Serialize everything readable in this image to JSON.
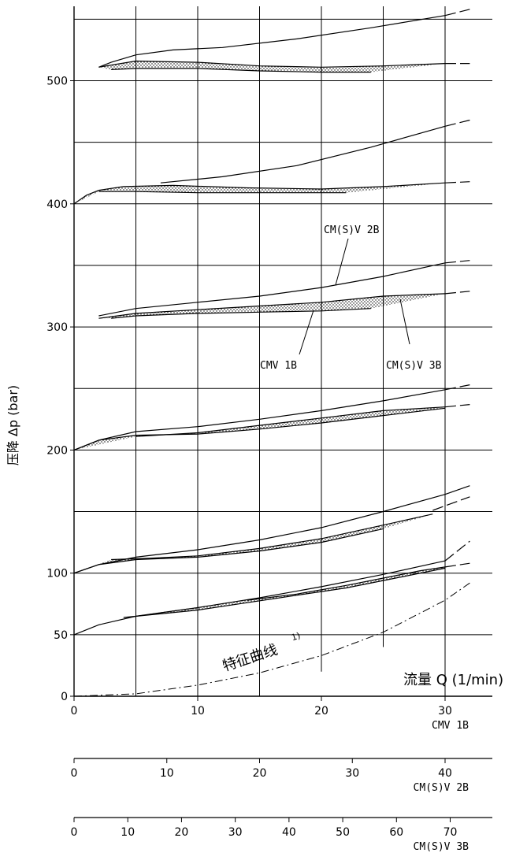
{
  "chart_data": {
    "type": "line",
    "ylabel": "压降 Δp (bar)",
    "xlabel": "流量 Q (1/min)",
    "xlim": [
      0,
      34
    ],
    "ylim": [
      0,
      560
    ],
    "grid": true,
    "y_ticks": [
      {
        "value": 0,
        "label": "0"
      },
      {
        "value": 50,
        "label": "50"
      },
      {
        "value": 100,
        "label": "100"
      },
      {
        "value": 200,
        "label": "200"
      },
      {
        "value": 300,
        "label": "300"
      },
      {
        "value": 400,
        "label": "400"
      },
      {
        "value": 500,
        "label": "500"
      }
    ],
    "axes": [
      {
        "label": "CMV 1B",
        "ticks": [
          "0",
          "10",
          "20",
          "30"
        ],
        "values": [
          0,
          10,
          20,
          30
        ],
        "scale": 1
      },
      {
        "label": "CM(S)V 2B",
        "ticks": [
          "0",
          "10",
          "20",
          "30",
          "40"
        ],
        "values": [
          0,
          10,
          20,
          30,
          40
        ],
        "scale": 0.75
      },
      {
        "label": "CM(S)V 3B",
        "ticks": [
          "0",
          "10",
          "20",
          "30",
          "40",
          "50",
          "60",
          "70"
        ],
        "values": [
          0,
          10,
          20,
          30,
          40,
          50,
          60,
          70
        ],
        "scale": 0.4345
      }
    ],
    "annotations": {
      "cmv2b": "CM(S)V 2B",
      "cmv1b": "CMV 1B",
      "cmv3b": "CM(S)V 3B",
      "char": "特征曲线",
      "char_sup": "1)"
    },
    "curve_groups": [
      {
        "setting": 500,
        "upper": [
          [
            2,
            511
          ],
          [
            3,
            515
          ],
          [
            5,
            521
          ],
          [
            8,
            525
          ],
          [
            12,
            527
          ],
          [
            18,
            534
          ],
          [
            24,
            543
          ],
          [
            30,
            553
          ]
        ],
        "band_top": [
          [
            2,
            511
          ],
          [
            5,
            516
          ],
          [
            10,
            515
          ],
          [
            15,
            512
          ],
          [
            20,
            511
          ],
          [
            25,
            512
          ],
          [
            30,
            514
          ]
        ],
        "band_bot": [
          [
            3,
            509
          ],
          [
            5,
            510
          ],
          [
            10,
            510
          ],
          [
            15,
            508
          ],
          [
            20,
            507
          ],
          [
            24,
            507
          ]
        ],
        "upper_ext": [
          [
            30,
            553
          ],
          [
            32,
            558
          ]
        ],
        "band_ext": [
          [
            30,
            514
          ],
          [
            32,
            514
          ]
        ]
      },
      {
        "setting": 400,
        "upper": [
          [
            7,
            417
          ],
          [
            12,
            422
          ],
          [
            18,
            431
          ],
          [
            24,
            446
          ],
          [
            30,
            463
          ]
        ],
        "band_top": [
          [
            0,
            400
          ],
          [
            1,
            407
          ],
          [
            2,
            411
          ],
          [
            4,
            414
          ],
          [
            8,
            415
          ],
          [
            14,
            413
          ],
          [
            20,
            412
          ],
          [
            25,
            414
          ],
          [
            30,
            417
          ]
        ],
        "band_bot": [
          [
            2,
            410
          ],
          [
            5,
            410
          ],
          [
            10,
            409
          ],
          [
            15,
            409
          ],
          [
            20,
            409
          ],
          [
            22,
            409
          ]
        ],
        "upper_ext": [
          [
            30,
            463
          ],
          [
            32,
            468
          ]
        ],
        "band_ext": [
          [
            30,
            417
          ],
          [
            32,
            418
          ]
        ]
      },
      {
        "setting": 300,
        "upper": [
          [
            2,
            309
          ],
          [
            5,
            315
          ],
          [
            10,
            320
          ],
          [
            15,
            325
          ],
          [
            20,
            332
          ],
          [
            25,
            341
          ],
          [
            30,
            352
          ]
        ],
        "band_top": [
          [
            2,
            307
          ],
          [
            5,
            311
          ],
          [
            10,
            314
          ],
          [
            15,
            317
          ],
          [
            20,
            320
          ],
          [
            25,
            325
          ],
          [
            30,
            327
          ]
        ],
        "band_bot": [
          [
            3,
            307
          ],
          [
            5,
            309
          ],
          [
            10,
            311
          ],
          [
            15,
            312
          ],
          [
            20,
            313
          ],
          [
            24,
            315
          ]
        ],
        "upper_ext": [
          [
            30,
            352
          ],
          [
            32,
            354
          ]
        ],
        "band_ext": [
          [
            30,
            327
          ],
          [
            32,
            329
          ]
        ]
      },
      {
        "setting": 200,
        "upper": [
          [
            0,
            200
          ],
          [
            2,
            208
          ],
          [
            5,
            215
          ],
          [
            10,
            219
          ],
          [
            15,
            225
          ],
          [
            20,
            232
          ],
          [
            25,
            240
          ],
          [
            30,
            249
          ]
        ],
        "band_top": [
          [
            5,
            211
          ],
          [
            10,
            214
          ],
          [
            15,
            220
          ],
          [
            20,
            226
          ],
          [
            25,
            232
          ],
          [
            30,
            235
          ]
        ],
        "band_bot": [
          [
            0,
            200
          ],
          [
            2,
            208
          ],
          [
            5,
            212
          ],
          [
            10,
            213
          ],
          [
            15,
            217
          ],
          [
            20,
            222
          ],
          [
            25,
            228
          ],
          [
            30,
            234
          ]
        ],
        "upper_ext": [
          [
            30,
            249
          ],
          [
            32,
            253
          ]
        ],
        "band_ext": [
          [
            30,
            235
          ],
          [
            32,
            237
          ]
        ]
      },
      {
        "setting": 100,
        "upper": [
          [
            0,
            100
          ],
          [
            2,
            107
          ],
          [
            5,
            113
          ],
          [
            10,
            119
          ],
          [
            15,
            127
          ],
          [
            20,
            137
          ],
          [
            25,
            150
          ],
          [
            30,
            164
          ],
          [
            32,
            171
          ]
        ],
        "band_top": [
          [
            3,
            111
          ],
          [
            6,
            112
          ],
          [
            10,
            114
          ],
          [
            15,
            120
          ],
          [
            20,
            128
          ],
          [
            25,
            139
          ],
          [
            29,
            148
          ]
        ],
        "band_bot": [
          [
            0,
            100
          ],
          [
            2,
            107
          ],
          [
            5,
            111
          ],
          [
            10,
            113
          ],
          [
            15,
            118
          ],
          [
            20,
            125
          ],
          [
            25,
            136
          ]
        ],
        "upper_ext": [],
        "band_ext": [
          [
            29,
            151
          ],
          [
            32,
            162
          ]
        ]
      },
      {
        "setting": 50,
        "upper": [
          [
            0,
            50
          ],
          [
            2,
            58
          ],
          [
            5,
            65
          ],
          [
            10,
            72
          ],
          [
            15,
            80
          ],
          [
            20,
            89
          ],
          [
            25,
            99
          ],
          [
            30,
            110
          ]
        ],
        "band_top": [
          [
            14,
            78
          ],
          [
            18,
            83
          ],
          [
            22,
            90
          ],
          [
            25,
            96
          ],
          [
            28,
            102
          ],
          [
            30,
            105
          ]
        ],
        "band_bot": [
          [
            4,
            64
          ],
          [
            10,
            70
          ],
          [
            14,
            76
          ],
          [
            18,
            82
          ],
          [
            22,
            88
          ],
          [
            26,
            96
          ],
          [
            30,
            104
          ]
        ],
        "upper_ext": [
          [
            30,
            110
          ],
          [
            32,
            126
          ]
        ],
        "band_ext": [
          [
            30,
            105
          ],
          [
            32,
            108
          ]
        ]
      }
    ],
    "characteristic": [
      [
        0,
        0
      ],
      [
        5,
        2
      ],
      [
        10,
        9
      ],
      [
        15,
        19
      ],
      [
        20,
        33
      ],
      [
        25,
        52
      ],
      [
        30,
        78
      ],
      [
        32,
        92
      ]
    ]
  }
}
